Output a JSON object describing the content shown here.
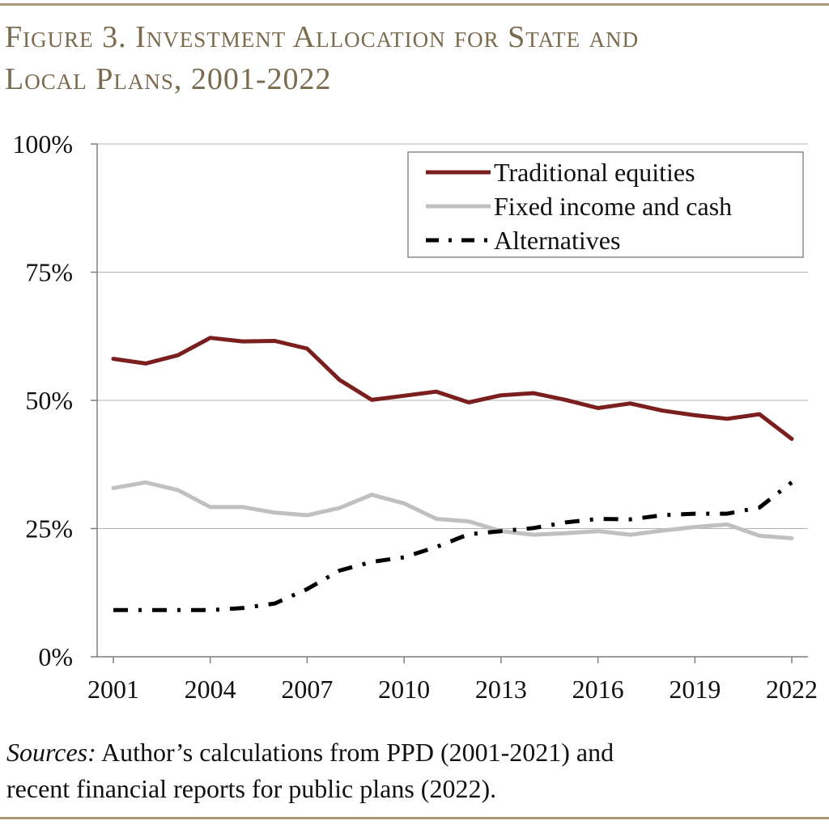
{
  "figure": {
    "title_line1": "Figure 3. Investment Allocation for State and",
    "title_line2": "Local Plans, 2001-2022"
  },
  "source": {
    "label": "Sources:",
    "line1_rest": " Author’s calculations from PPD (2001-2021) and",
    "line2": "recent financial reports for public plans (2022)."
  },
  "chart_data": {
    "type": "line",
    "title": "",
    "xlabel": "",
    "ylabel": "",
    "x": [
      2001,
      2002,
      2003,
      2004,
      2005,
      2006,
      2007,
      2008,
      2009,
      2010,
      2011,
      2012,
      2013,
      2014,
      2015,
      2016,
      2017,
      2018,
      2019,
      2020,
      2021,
      2022
    ],
    "xlim": [
      2000.5,
      2022.5
    ],
    "ylim": [
      0,
      100
    ],
    "x_ticks": [
      "2001",
      "2004",
      "2007",
      "2010",
      "2013",
      "2016",
      "2019",
      "2022"
    ],
    "y_ticks": [
      "0%",
      "25%",
      "50%",
      "75%",
      "100%"
    ],
    "grid": "horizontal",
    "legend_position": "top-right",
    "series": [
      {
        "name": "Traditional equities",
        "color": "#7b1e1e",
        "style": "solid",
        "values": [
          58.1,
          57.2,
          58.8,
          62.2,
          61.5,
          61.6,
          60.1,
          54.0,
          50.1,
          50.9,
          51.7,
          49.6,
          51.0,
          51.4,
          50.1,
          48.5,
          49.4,
          48.0,
          47.1,
          46.4,
          47.3,
          42.5
        ]
      },
      {
        "name": "Fixed income and cash",
        "color": "#c0c0c0",
        "style": "solid",
        "values": [
          32.9,
          34.0,
          32.5,
          29.2,
          29.2,
          28.1,
          27.6,
          29.0,
          31.6,
          29.9,
          26.9,
          26.4,
          24.5,
          23.8,
          24.1,
          24.5,
          23.8,
          24.6,
          25.3,
          25.8,
          23.6,
          23.1
        ]
      },
      {
        "name": "Alternatives",
        "color": "#000000",
        "style": "dash-dot",
        "values": [
          9.1,
          9.1,
          9.1,
          9.1,
          9.5,
          10.4,
          13.2,
          16.8,
          18.5,
          19.4,
          21.4,
          23.9,
          24.5,
          25.1,
          26.2,
          26.9,
          26.8,
          27.6,
          27.9,
          27.9,
          29.1,
          34.0
        ]
      }
    ]
  }
}
